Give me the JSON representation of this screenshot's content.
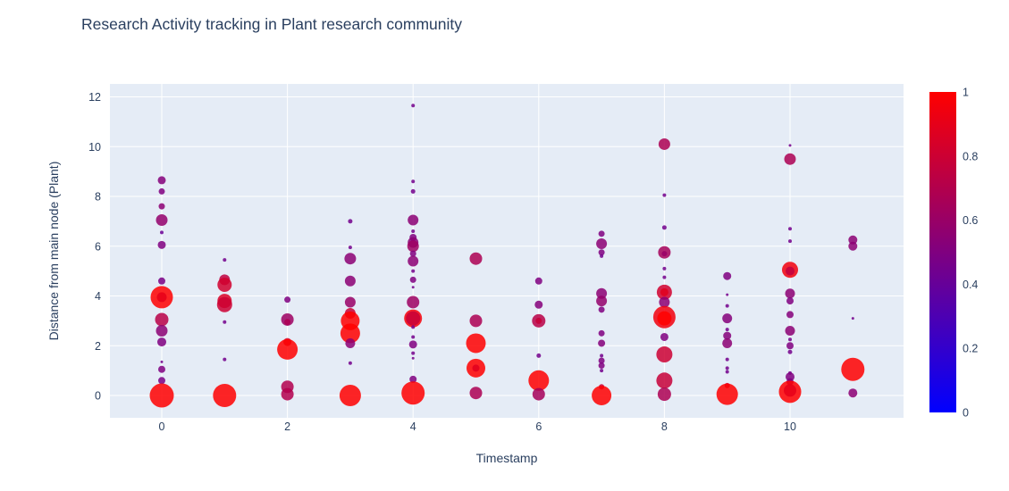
{
  "title": "Research Activity tracking in Plant research community",
  "colors": {
    "title_text": "#2a3f5f",
    "tick_text": "#2a3f5f",
    "plot_background": "#e5ecf6",
    "gridline": "#ffffff",
    "paper": "#ffffff",
    "colorbar_top": "#ff0000",
    "colorbar_bottom": "#0000ff"
  },
  "chart_data": {
    "type": "scatter",
    "title": "Research Activity tracking in Plant research community",
    "xlabel": "Timestamp",
    "ylabel": "Distance from main node (Plant)",
    "xlim": [
      -0.83,
      11.8
    ],
    "ylim": [
      -0.9,
      12.55
    ],
    "xticks": [
      0,
      2,
      4,
      6,
      8,
      10
    ],
    "yticks": [
      0,
      2,
      4,
      6,
      8,
      10,
      12
    ],
    "grid": true,
    "legend_position": "none",
    "colorbar": {
      "min": 0,
      "max": 1,
      "tick_labels": [
        "1",
        "0.8",
        "0.6",
        "0.4",
        "0.2",
        "0"
      ],
      "tick_values": [
        1,
        0.8,
        0.6,
        0.4,
        0.2,
        0
      ],
      "scale": "bluered"
    },
    "marker_opacity": 0.85,
    "point_format": "[x, y, radius_px, color_value_0_to_1]",
    "points": [
      [
        0,
        8.65,
        4.5,
        0.52
      ],
      [
        0,
        8.2,
        3.5,
        0.5
      ],
      [
        0,
        7.6,
        3.5,
        0.55
      ],
      [
        0,
        7.05,
        6.5,
        0.58
      ],
      [
        0,
        6.55,
        2,
        0.42
      ],
      [
        0,
        6.05,
        4.5,
        0.5
      ],
      [
        0,
        4.6,
        4,
        0.48
      ],
      [
        0,
        3.95,
        12.5,
        1.0
      ],
      [
        0,
        3.95,
        5.5,
        0.9
      ],
      [
        0,
        3.05,
        7.5,
        0.72
      ],
      [
        0,
        2.6,
        6.5,
        0.55
      ],
      [
        0,
        2.15,
        5,
        0.5
      ],
      [
        0,
        1.35,
        1.5,
        0.45
      ],
      [
        0,
        1.05,
        4,
        0.5
      ],
      [
        0,
        0.6,
        4,
        0.48
      ],
      [
        0,
        0,
        13.5,
        1.0
      ],
      [
        1,
        5.45,
        2,
        0.45
      ],
      [
        1,
        4.65,
        6,
        0.75
      ],
      [
        1,
        4.45,
        8,
        0.82
      ],
      [
        1,
        3.8,
        8,
        0.85
      ],
      [
        1,
        3.65,
        8.5,
        0.8
      ],
      [
        1,
        2.95,
        2,
        0.45
      ],
      [
        1,
        1.45,
        2,
        0.45
      ],
      [
        1,
        0,
        13,
        1.0
      ],
      [
        2,
        3.85,
        3.5,
        0.5
      ],
      [
        2,
        3.05,
        7,
        0.62
      ],
      [
        2,
        2.95,
        3.5,
        0.68
      ],
      [
        2,
        2.15,
        4.5,
        0.85
      ],
      [
        2,
        1.85,
        11.5,
        1.0
      ],
      [
        2,
        0.35,
        7,
        0.7
      ],
      [
        2,
        0.05,
        7,
        0.7
      ],
      [
        3,
        7.0,
        2.5,
        0.45
      ],
      [
        3,
        5.95,
        2,
        0.45
      ],
      [
        3,
        5.5,
        6.5,
        0.55
      ],
      [
        3,
        4.6,
        6,
        0.55
      ],
      [
        3,
        3.75,
        6,
        0.6
      ],
      [
        3,
        3.3,
        6,
        0.8
      ],
      [
        3,
        3.0,
        10.5,
        1.0
      ],
      [
        3,
        2.5,
        11,
        1.0
      ],
      [
        3,
        2.1,
        5.5,
        0.55
      ],
      [
        3,
        1.3,
        2,
        0.45
      ],
      [
        3,
        0,
        12,
        1.0
      ],
      [
        4,
        11.65,
        2,
        0.45
      ],
      [
        4,
        8.6,
        2,
        0.45
      ],
      [
        4,
        8.2,
        2.5,
        0.45
      ],
      [
        4,
        7.05,
        6,
        0.55
      ],
      [
        4,
        6.6,
        2,
        0.45
      ],
      [
        4,
        6.35,
        4,
        0.5
      ],
      [
        4,
        6.15,
        6,
        0.55
      ],
      [
        4,
        6.0,
        6.5,
        0.62
      ],
      [
        4,
        5.7,
        3.5,
        0.5
      ],
      [
        4,
        5.4,
        6,
        0.55
      ],
      [
        4,
        5.0,
        2,
        0.45
      ],
      [
        4,
        4.65,
        3.5,
        0.5
      ],
      [
        4,
        4.35,
        1.5,
        0.45
      ],
      [
        4,
        3.75,
        7,
        0.62
      ],
      [
        4,
        3.1,
        10,
        0.97
      ],
      [
        4,
        3.1,
        8,
        0.78
      ],
      [
        4,
        2.75,
        2,
        0.45
      ],
      [
        4,
        2.35,
        2,
        0.45
      ],
      [
        4,
        2.05,
        4.5,
        0.5
      ],
      [
        4,
        1.7,
        2,
        0.45
      ],
      [
        4,
        1.5,
        1.5,
        0.45
      ],
      [
        4,
        0.65,
        4,
        0.5
      ],
      [
        4,
        0.1,
        13,
        1.0
      ],
      [
        5,
        5.5,
        7,
        0.68
      ],
      [
        5,
        3.0,
        7,
        0.68
      ],
      [
        5,
        2.1,
        11,
        1.0
      ],
      [
        5,
        1.1,
        10.5,
        1.0
      ],
      [
        5,
        1.1,
        4,
        0.88
      ],
      [
        5,
        0.1,
        7,
        0.68
      ],
      [
        6,
        4.6,
        4,
        0.5
      ],
      [
        6,
        3.65,
        4.5,
        0.52
      ],
      [
        6,
        3.0,
        7.5,
        0.72
      ],
      [
        6,
        3.0,
        3.5,
        0.78
      ],
      [
        6,
        1.6,
        2.5,
        0.45
      ],
      [
        6,
        0.6,
        11.5,
        1.0
      ],
      [
        6,
        0.05,
        7,
        0.65
      ],
      [
        7,
        6.5,
        3.5,
        0.5
      ],
      [
        7,
        6.1,
        6,
        0.55
      ],
      [
        7,
        5.75,
        3.5,
        0.5
      ],
      [
        7,
        5.6,
        2,
        0.45
      ],
      [
        7,
        4.1,
        6,
        0.55
      ],
      [
        7,
        3.8,
        6,
        0.58
      ],
      [
        7,
        3.45,
        3.5,
        0.5
      ],
      [
        7,
        2.5,
        3.5,
        0.5
      ],
      [
        7,
        2.1,
        4,
        0.52
      ],
      [
        7,
        1.6,
        2,
        0.45
      ],
      [
        7,
        1.4,
        3.5,
        0.5
      ],
      [
        7,
        1.2,
        3.5,
        0.5
      ],
      [
        7,
        1.0,
        2,
        0.45
      ],
      [
        7,
        0.35,
        3,
        0.8
      ],
      [
        7,
        0,
        11,
        1.0
      ],
      [
        8,
        10.1,
        6.5,
        0.68
      ],
      [
        8,
        8.05,
        2,
        0.45
      ],
      [
        8,
        6.75,
        2.5,
        0.45
      ],
      [
        8,
        5.75,
        7,
        0.65
      ],
      [
        8,
        5.7,
        3,
        0.6
      ],
      [
        8,
        5.1,
        2,
        0.45
      ],
      [
        8,
        4.75,
        2,
        0.45
      ],
      [
        8,
        4.15,
        8.5,
        0.82
      ],
      [
        8,
        4.15,
        4.5,
        0.88
      ],
      [
        8,
        3.75,
        6,
        0.55
      ],
      [
        8,
        3.15,
        12.5,
        0.95
      ],
      [
        8,
        3.1,
        8,
        1.0
      ],
      [
        8,
        2.35,
        4.5,
        0.5
      ],
      [
        8,
        1.65,
        9,
        0.8
      ],
      [
        8,
        0.6,
        9,
        0.78
      ],
      [
        8,
        0.05,
        7.5,
        0.68
      ],
      [
        9,
        4.8,
        4.5,
        0.5
      ],
      [
        9,
        4.05,
        1.5,
        0.45
      ],
      [
        9,
        3.6,
        2,
        0.45
      ],
      [
        9,
        3.1,
        5.5,
        0.52
      ],
      [
        9,
        2.65,
        2,
        0.45
      ],
      [
        9,
        2.4,
        4.5,
        0.52
      ],
      [
        9,
        2.1,
        5.5,
        0.55
      ],
      [
        9,
        1.45,
        2,
        0.45
      ],
      [
        9,
        1.1,
        2,
        0.45
      ],
      [
        9,
        0.95,
        2,
        0.45
      ],
      [
        9,
        0.4,
        3,
        0.82
      ],
      [
        9,
        0.05,
        12,
        1.0
      ],
      [
        10,
        10.05,
        1.5,
        0.45
      ],
      [
        10,
        9.5,
        6.5,
        0.68
      ],
      [
        10,
        6.7,
        2,
        0.45
      ],
      [
        10,
        6.2,
        2,
        0.45
      ],
      [
        10,
        5.05,
        9,
        0.95
      ],
      [
        10,
        5.0,
        5,
        0.75
      ],
      [
        10,
        4.1,
        5.5,
        0.55
      ],
      [
        10,
        3.8,
        4,
        0.5
      ],
      [
        10,
        3.25,
        4,
        0.52
      ],
      [
        10,
        2.6,
        5.5,
        0.55
      ],
      [
        10,
        2.25,
        2,
        0.45
      ],
      [
        10,
        2.0,
        4,
        0.5
      ],
      [
        10,
        1.75,
        2.5,
        0.45
      ],
      [
        10,
        0.9,
        2,
        0.45
      ],
      [
        10,
        0.75,
        5,
        0.5
      ],
      [
        10,
        0.55,
        4,
        0.5
      ],
      [
        10,
        0.15,
        12.5,
        1.0
      ],
      [
        10,
        0.2,
        7,
        0.9
      ],
      [
        11,
        6.25,
        5,
        0.55
      ],
      [
        11,
        6.0,
        5,
        0.55
      ],
      [
        11,
        3.1,
        1.5,
        0.45
      ],
      [
        11,
        1.05,
        13,
        1.0
      ],
      [
        11,
        0.1,
        5,
        0.55
      ]
    ]
  }
}
